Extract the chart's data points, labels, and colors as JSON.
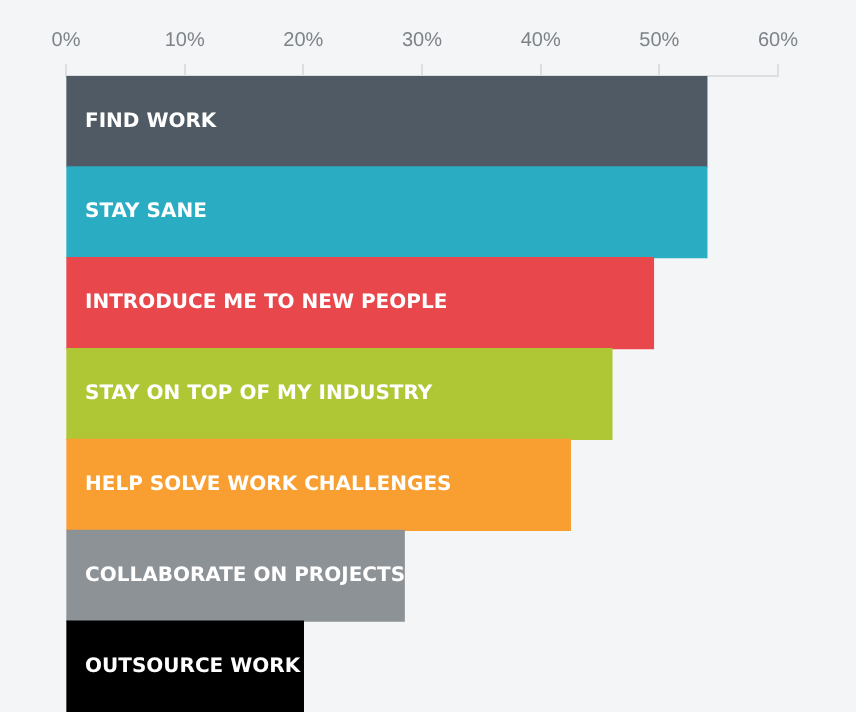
{
  "chart_data": {
    "type": "bar",
    "orientation": "horizontal",
    "categories": [
      "FIND WORK",
      "STAY SANE",
      "INTRODUCE ME TO NEW PEOPLE",
      "STAY ON TOP OF MY INDUSTRY",
      "HELP SOLVE WORK CHALLENGES",
      "COLLABORATE ON PROJECTS",
      "OUTSOURCE WORK"
    ],
    "values": [
      54,
      54,
      49.5,
      46,
      42.5,
      28.5,
      20
    ],
    "colors": [
      "#4f5a64",
      "#2aadc3",
      "#e8474c",
      "#afc735",
      "#f99f32",
      "#8d9296",
      "#000000"
    ],
    "xlim": [
      0,
      60
    ],
    "xticks": [
      {
        "value": 0,
        "label": "0%"
      },
      {
        "value": 10,
        "label": "10%"
      },
      {
        "value": 20,
        "label": "20%"
      },
      {
        "value": 30,
        "label": "30%"
      },
      {
        "value": 40,
        "label": "40%"
      },
      {
        "value": 50,
        "label": "50%"
      },
      {
        "value": 60,
        "label": "60%"
      }
    ],
    "grid": false
  }
}
